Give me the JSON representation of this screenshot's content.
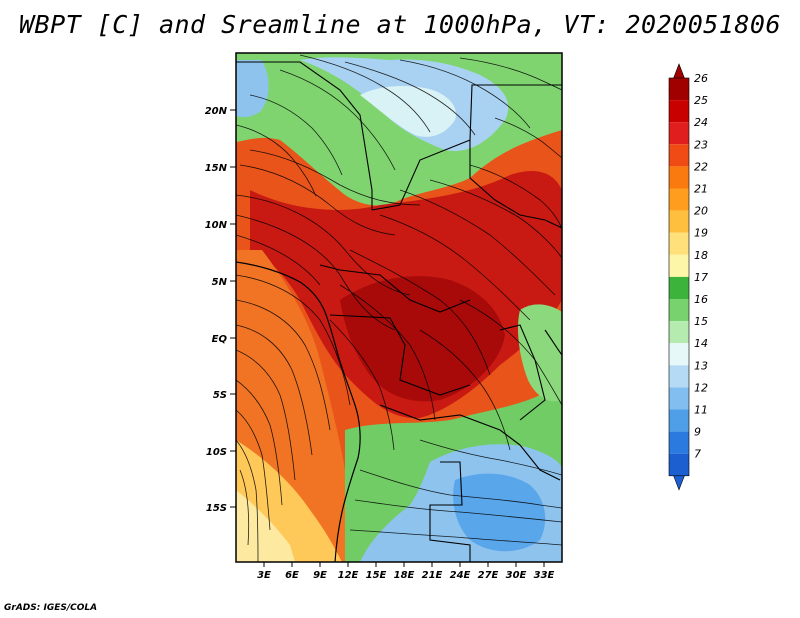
{
  "title": "WBPT [C] and Sreamline at 1000hPa, VT: 2020051806",
  "credit": "GrADS: IGES/COLA",
  "map": {
    "lat_labels": [
      "20N",
      "15N",
      "10N",
      "5N",
      "EQ",
      "5S",
      "10S",
      "15S"
    ],
    "lon_labels": [
      "3E",
      "6E",
      "9E",
      "12E",
      "15E",
      "18E",
      "21E",
      "24E",
      "27E",
      "30E",
      "33E"
    ]
  },
  "colorbar": {
    "labels": [
      "26",
      "25",
      "24",
      "23",
      "22",
      "21",
      "20",
      "19",
      "18",
      "17",
      "16",
      "15",
      "14",
      "13",
      "12",
      "11",
      "9",
      "7"
    ],
    "colors": [
      "#a00000",
      "#c80000",
      "#e01e1e",
      "#f04b14",
      "#fa7a10",
      "#ff9e1e",
      "#ffbf3e",
      "#ffe07a",
      "#fdf5a8",
      "#3cb43c",
      "#78d26e",
      "#b6ebb0",
      "#e6f8f8",
      "#b4daf5",
      "#82bff0",
      "#4f9fe8",
      "#2a7ae0",
      "#1c5fd0"
    ]
  }
}
